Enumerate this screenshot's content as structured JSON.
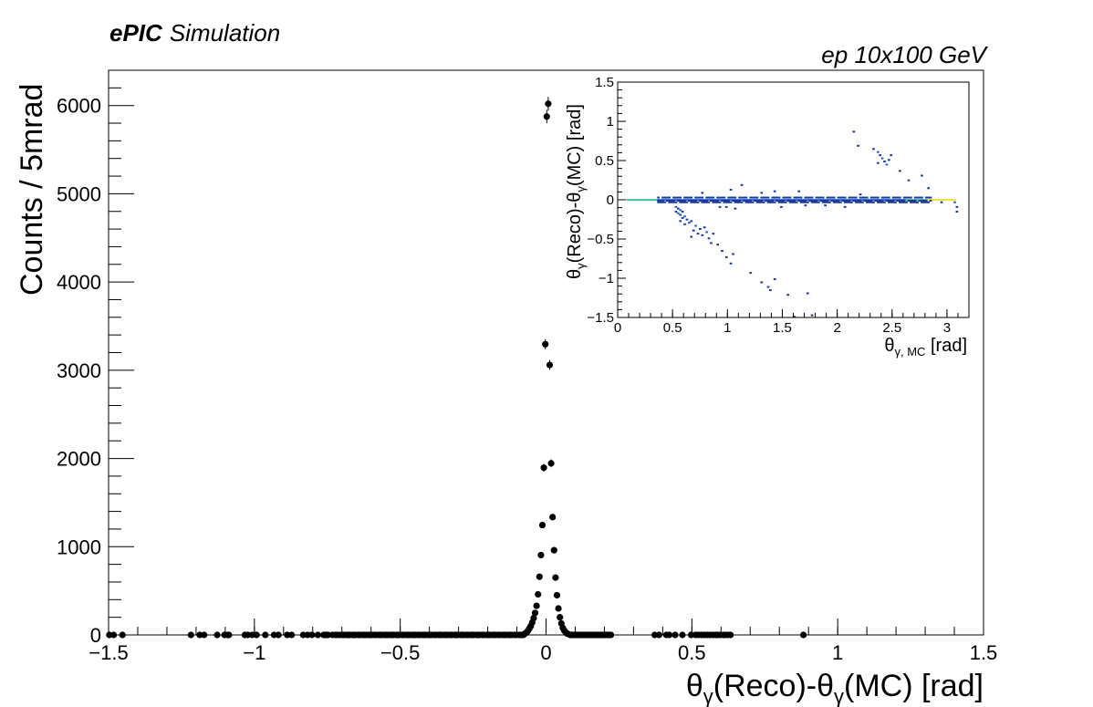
{
  "header": {
    "label_bold": "ePIC",
    "label_italic": "Simulation",
    "beam_label": "ep 10x100 GeV"
  },
  "chart_data": [
    {
      "type": "scatter",
      "plot_style": "histogram-points-with-error-bars",
      "title": "",
      "xlabel": "θγ(Reco)-θγ(MC) [rad]",
      "xlabel_parts": {
        "theta": "θ",
        "sub": "γ",
        "rest1": "(Reco)-θ",
        "sub2": "γ",
        "rest2": "(MC) [rad]"
      },
      "ylabel": "Counts / 5mrad",
      "xlim": [
        -1.5,
        1.5
      ],
      "ylim": [
        0,
        6400
      ],
      "xticks": [
        -1.5,
        -1,
        -0.5,
        0,
        0.5,
        1,
        1.5
      ],
      "xtick_labels": [
        "−1.5",
        "−1",
        "−0.5",
        "0",
        "0.5",
        "1",
        "1.5"
      ],
      "yticks": [
        0,
        1000,
        2000,
        3000,
        4000,
        5000,
        6000
      ],
      "ytick_labels": [
        "0",
        "1000",
        "2000",
        "3000",
        "4000",
        "5000",
        "6000"
      ],
      "peak_points": [
        {
          "x": -0.0725,
          "y": 15
        },
        {
          "x": -0.0675,
          "y": 25
        },
        {
          "x": -0.0625,
          "y": 45
        },
        {
          "x": -0.0575,
          "y": 70
        },
        {
          "x": -0.0525,
          "y": 100
        },
        {
          "x": -0.0475,
          "y": 140
        },
        {
          "x": -0.0425,
          "y": 190
        },
        {
          "x": -0.0375,
          "y": 250
        },
        {
          "x": -0.0325,
          "y": 330
        },
        {
          "x": -0.0275,
          "y": 460
        },
        {
          "x": -0.0225,
          "y": 660
        },
        {
          "x": -0.0175,
          "y": 905
        },
        {
          "x": -0.0125,
          "y": 1245
        },
        {
          "x": -0.0075,
          "y": 1895
        },
        {
          "x": -0.0025,
          "y": 3295
        },
        {
          "x": 0.0025,
          "y": 5875
        },
        {
          "x": 0.0075,
          "y": 6020
        },
        {
          "x": 0.0125,
          "y": 3060
        },
        {
          "x": 0.0175,
          "y": 1945
        },
        {
          "x": 0.0225,
          "y": 1335
        },
        {
          "x": 0.0275,
          "y": 960
        },
        {
          "x": 0.0325,
          "y": 650
        },
        {
          "x": 0.0375,
          "y": 450
        },
        {
          "x": 0.0425,
          "y": 300
        },
        {
          "x": 0.0475,
          "y": 200
        },
        {
          "x": 0.0525,
          "y": 130
        },
        {
          "x": 0.0575,
          "y": 80
        },
        {
          "x": 0.0625,
          "y": 50
        },
        {
          "x": 0.0675,
          "y": 30
        },
        {
          "x": 0.0725,
          "y": 15
        },
        {
          "x": 0.0775,
          "y": 8
        }
      ],
      "zero_region_points_x": [
        -1.4975,
        -1.4825,
        -1.4525,
        -1.2175,
        -1.1875,
        -1.1725,
        -1.1275,
        -1.1025,
        -1.0925,
        -1.0875,
        -1.0325,
        -1.0225,
        -1.0075,
        -0.9925,
        -0.9625,
        -0.9325,
        -0.9175,
        -0.8875,
        -0.8725,
        -0.8325,
        -0.8175,
        -0.8025,
        -0.7825,
        -0.7625,
        -0.7575,
        -0.7525,
        -0.7475,
        -0.7325,
        -0.7225,
        -0.7175,
        -0.7075,
        -0.6975,
        -0.6925,
        -0.6825,
        -0.6775,
        -0.6725,
        -0.6625,
        -0.6575,
        -0.6525,
        -0.6425,
        -0.6375,
        -0.6275,
        -0.6225,
        -0.6175,
        -0.6075,
        -0.6025,
        -0.5975,
        -0.5875,
        -0.5825,
        -0.5725,
        -0.5675,
        -0.5625,
        -0.5525,
        -0.5475,
        -0.5425,
        -0.5325,
        -0.5275,
        -0.5225,
        -0.5125,
        -0.5075,
        -0.5025,
        -0.4925,
        -0.4875,
        -0.4775,
        -0.4725,
        -0.4675,
        -0.4575,
        -0.4525,
        -0.4475,
        -0.4375,
        -0.4325,
        -0.4225,
        -0.4175,
        -0.4125,
        -0.4025,
        -0.3975,
        -0.3925,
        -0.3825,
        -0.3775,
        -0.3675,
        -0.3625,
        -0.3575,
        -0.3475,
        -0.3425,
        -0.3375,
        -0.3275,
        -0.3225,
        -0.3125,
        -0.3075,
        -0.3025,
        -0.2925,
        -0.2875,
        -0.2825,
        -0.2725,
        -0.2675,
        -0.2575,
        -0.2525,
        -0.2475,
        -0.2375,
        -0.2325,
        -0.2275,
        -0.2175,
        -0.2125,
        -0.2025,
        -0.1975,
        -0.1925,
        -0.1825,
        -0.1775,
        -0.1725,
        -0.1625,
        -0.1575,
        -0.1475,
        -0.1425,
        -0.1375,
        -0.1275,
        -0.1225,
        -0.1175,
        -0.1075,
        -0.1025,
        -0.0925,
        -0.0875,
        -0.0825,
        -0.0775,
        0.0825,
        0.0875,
        0.0925,
        0.0975,
        0.1025,
        0.1075,
        0.1125,
        0.1175,
        0.1225,
        0.1275,
        0.1325,
        0.1375,
        0.1425,
        0.1475,
        0.1525,
        0.1575,
        0.1625,
        0.1675,
        0.1725,
        0.1775,
        0.1825,
        0.1875,
        0.1925,
        0.1975,
        0.2025,
        0.2075,
        0.2125,
        0.2175,
        0.2225,
        0.3725,
        0.3875,
        0.4125,
        0.4225,
        0.4425,
        0.4675,
        0.4975,
        0.5125,
        0.5225,
        0.5325,
        0.5425,
        0.5525,
        0.5625,
        0.5725,
        0.5825,
        0.5875,
        0.5975,
        0.6075,
        0.6125,
        0.6225,
        0.6325,
        0.8825
      ]
    },
    {
      "type": "heatmap",
      "title": "",
      "xlabel": "θγ, MC [rad]",
      "xlabel_parts": {
        "theta": "θ",
        "sub": "γ, MC",
        "rest": " [rad]"
      },
      "ylabel": "θγ(Reco)-θγ(MC) [rad]",
      "ylabel_parts": {
        "theta": "θ",
        "sub": "γ",
        "rest1": "(Reco)-θ",
        "sub2": "γ",
        "rest2": "(MC) [rad]"
      },
      "xlim": [
        0,
        3.2
      ],
      "ylim": [
        -1.5,
        1.5
      ],
      "xticks": [
        0,
        0.5,
        1,
        1.5,
        2,
        2.5,
        3
      ],
      "xtick_labels": [
        "0",
        "0.5",
        "1",
        "1.5",
        "2",
        "2.5",
        "3"
      ],
      "yticks": [
        -1.5,
        -1,
        -0.5,
        0,
        0.5,
        1,
        1.5
      ],
      "ytick_labels": [
        "−1.5",
        "−1",
        "−0.5",
        "0",
        "0.5",
        "1",
        "1.5"
      ],
      "bin_width": [
        0.02,
        0.02
      ],
      "colorscale": [
        "#1a3a9c",
        "#2464c8",
        "#1f9fcf",
        "#3fbf9a",
        "#a8d25a",
        "#f2e03a"
      ],
      "band": [
        {
          "x0": 0.08,
          "x1": 0.36,
          "level": 3
        },
        {
          "x0": 0.36,
          "x1": 2.62,
          "level": 1
        },
        {
          "x0": 2.62,
          "x1": 2.82,
          "level": 3
        },
        {
          "x0": 2.82,
          "x1": 3.08,
          "level": 5
        }
      ],
      "band_row_levels": [
        {
          "dy": 0.02,
          "level": 0
        },
        {
          "dy": -0.02,
          "level": 0
        },
        {
          "dy": -0.04,
          "level": 0
        }
      ],
      "cells": [
        {
          "x": 0.52,
          "y": -0.1,
          "v": 1
        },
        {
          "x": 0.54,
          "y": -0.12,
          "v": 0
        },
        {
          "x": 0.56,
          "y": -0.14,
          "v": 1
        },
        {
          "x": 0.58,
          "y": -0.16,
          "v": 0
        },
        {
          "x": 0.52,
          "y": -0.16,
          "v": 0
        },
        {
          "x": 0.54,
          "y": -0.18,
          "v": 1
        },
        {
          "x": 0.56,
          "y": -0.2,
          "v": 0
        },
        {
          "x": 0.6,
          "y": -0.22,
          "v": 1
        },
        {
          "x": 0.58,
          "y": -0.24,
          "v": 0
        },
        {
          "x": 0.62,
          "y": -0.26,
          "v": 0
        },
        {
          "x": 0.56,
          "y": -0.28,
          "v": 0
        },
        {
          "x": 0.64,
          "y": -0.3,
          "v": 1
        },
        {
          "x": 0.6,
          "y": -0.32,
          "v": 0
        },
        {
          "x": 0.66,
          "y": -0.28,
          "v": 0
        },
        {
          "x": 0.7,
          "y": -0.34,
          "v": 1
        },
        {
          "x": 0.74,
          "y": -0.38,
          "v": 0
        },
        {
          "x": 0.68,
          "y": -0.4,
          "v": 0
        },
        {
          "x": 0.72,
          "y": -0.44,
          "v": 0
        },
        {
          "x": 0.78,
          "y": -0.36,
          "v": 0
        },
        {
          "x": 0.8,
          "y": -0.42,
          "v": 1
        },
        {
          "x": 0.76,
          "y": -0.46,
          "v": 0
        },
        {
          "x": 0.82,
          "y": -0.5,
          "v": 0
        },
        {
          "x": 0.66,
          "y": -0.48,
          "v": 0
        },
        {
          "x": 0.86,
          "y": -0.44,
          "v": 0
        },
        {
          "x": 0.84,
          "y": -0.56,
          "v": 0
        },
        {
          "x": 0.9,
          "y": -0.58,
          "v": 0
        },
        {
          "x": 0.94,
          "y": -0.66,
          "v": 0
        },
        {
          "x": 0.98,
          "y": -0.74,
          "v": 0
        },
        {
          "x": 1.02,
          "y": -0.82,
          "v": 0
        },
        {
          "x": 1.04,
          "y": -0.7,
          "v": 0
        },
        {
          "x": 1.2,
          "y": -0.94,
          "v": 0
        },
        {
          "x": 1.3,
          "y": -1.06,
          "v": 0
        },
        {
          "x": 1.36,
          "y": -1.12,
          "v": 0
        },
        {
          "x": 1.38,
          "y": -1.16,
          "v": 0
        },
        {
          "x": 1.42,
          "y": -1.02,
          "v": 0
        },
        {
          "x": 1.54,
          "y": -1.22,
          "v": 0
        },
        {
          "x": 1.72,
          "y": -1.2,
          "v": 0
        },
        {
          "x": 1.6,
          "y": -1.5,
          "v": 0
        },
        {
          "x": 1.76,
          "y": -1.48,
          "v": 0
        },
        {
          "x": 2.14,
          "y": 0.86,
          "v": 0
        },
        {
          "x": 2.18,
          "y": 0.68,
          "v": 0
        },
        {
          "x": 2.32,
          "y": 0.64,
          "v": 0
        },
        {
          "x": 2.36,
          "y": 0.6,
          "v": 1
        },
        {
          "x": 2.38,
          "y": 0.56,
          "v": 0
        },
        {
          "x": 2.4,
          "y": 0.52,
          "v": 1
        },
        {
          "x": 2.42,
          "y": 0.48,
          "v": 0
        },
        {
          "x": 2.44,
          "y": 0.44,
          "v": 1
        },
        {
          "x": 2.46,
          "y": 0.5,
          "v": 0
        },
        {
          "x": 2.36,
          "y": 0.46,
          "v": 0
        },
        {
          "x": 2.48,
          "y": 0.56,
          "v": 0
        },
        {
          "x": 2.56,
          "y": 0.36,
          "v": 0
        },
        {
          "x": 2.64,
          "y": 0.24,
          "v": 0
        },
        {
          "x": 2.76,
          "y": 0.3,
          "v": 0
        },
        {
          "x": 2.82,
          "y": 0.14,
          "v": 0
        },
        {
          "x": 1.02,
          "y": 0.12,
          "v": 0
        },
        {
          "x": 1.12,
          "y": 0.18,
          "v": 0
        },
        {
          "x": 1.3,
          "y": 0.08,
          "v": 0
        },
        {
          "x": 1.42,
          "y": 0.1,
          "v": 0
        },
        {
          "x": 1.64,
          "y": 0.1,
          "v": 0
        },
        {
          "x": 0.76,
          "y": 0.08,
          "v": 0
        },
        {
          "x": 0.92,
          "y": -0.1,
          "v": 0
        },
        {
          "x": 1.48,
          "y": -0.1,
          "v": 0
        },
        {
          "x": 1.88,
          "y": -0.08,
          "v": 0
        },
        {
          "x": 2.06,
          "y": -0.1,
          "v": 0
        },
        {
          "x": 2.2,
          "y": 0.06,
          "v": 0
        },
        {
          "x": 0.98,
          "y": -0.1,
          "v": 0
        },
        {
          "x": 1.06,
          "y": -0.12,
          "v": 0
        },
        {
          "x": 1.7,
          "y": -0.08,
          "v": 0
        },
        {
          "x": 3.08,
          "y": -0.1,
          "v": 0
        },
        {
          "x": 3.08,
          "y": -0.16,
          "v": 0
        },
        {
          "x": 3.06,
          "y": -0.04,
          "v": 1
        },
        {
          "x": 2.94,
          "y": -0.04,
          "v": 0
        }
      ]
    }
  ]
}
